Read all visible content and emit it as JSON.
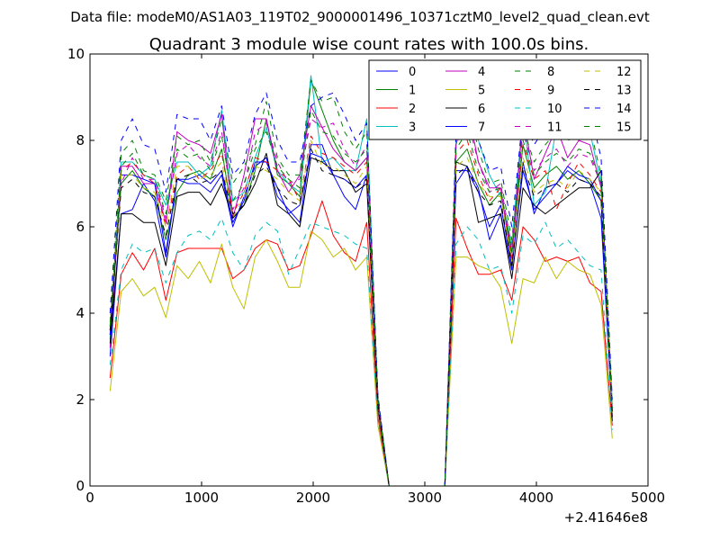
{
  "chart_data": {
    "type": "line",
    "suptitle": "Data file: modeM0/AS1A03_119T02_9000001496_10371cztM0_level2_quad_clean.evt",
    "title": "Quadrant 3 module wise count rates with 100.0s bins.",
    "xlabel": "",
    "ylabel": "",
    "offset_text": "+2.41646e8",
    "xlim": [
      0,
      5000
    ],
    "ylim": [
      0,
      10
    ],
    "xticks": [
      "0",
      "1000",
      "2000",
      "3000",
      "4000",
      "5000"
    ],
    "yticks": [
      "0",
      "2",
      "4",
      "6",
      "8",
      "10"
    ],
    "legend_position": "top-right",
    "x": [
      180,
      280,
      380,
      480,
      580,
      680,
      780,
      880,
      980,
      1080,
      1180,
      1280,
      1380,
      1480,
      1580,
      1680,
      1780,
      1880,
      1980,
      2080,
      2180,
      2280,
      2380,
      2480,
      2580,
      2680,
      2780,
      2880,
      2980,
      3080,
      3180,
      3280,
      3380,
      3480,
      3580,
      3680,
      3780,
      3880,
      3980,
      4080,
      4180,
      4280,
      4380,
      4480,
      4580,
      4680
    ],
    "series": [
      {
        "name": "0",
        "color": "#0000ff",
        "dash": "solid",
        "values": [
          3.0,
          6.3,
          6.4,
          7.0,
          6.6,
          5.3,
          7.1,
          7.0,
          7.0,
          6.8,
          7.2,
          6.0,
          6.7,
          7.4,
          7.6,
          6.7,
          6.4,
          6.1,
          7.9,
          7.9,
          7.2,
          6.7,
          6.4,
          7.2,
          1.9,
          0,
          0,
          0,
          0,
          0,
          0,
          7.0,
          7.4,
          6.9,
          5.7,
          6.3,
          5.0,
          7.5,
          6.3,
          6.9,
          7.0,
          7.3,
          7.1,
          7.0,
          6.2,
          1.6
        ]
      },
      {
        "name": "1",
        "color": "#008000",
        "dash": "solid",
        "values": [
          3.5,
          7.0,
          7.3,
          6.9,
          6.7,
          5.7,
          6.8,
          7.2,
          7.3,
          7.1,
          7.8,
          6.2,
          6.5,
          7.3,
          8.5,
          7.2,
          7.0,
          6.7,
          9.4,
          8.7,
          8.0,
          7.5,
          7.3,
          7.6,
          2.0,
          0,
          0,
          0,
          0,
          0,
          0,
          7.5,
          7.8,
          7.0,
          6.5,
          6.8,
          5.4,
          7.9,
          6.9,
          7.2,
          7.4,
          7.1,
          7.3,
          7.0,
          6.6,
          1.7
        ]
      },
      {
        "name": "2",
        "color": "#ff0000",
        "dash": "solid",
        "values": [
          2.5,
          4.9,
          5.4,
          5.0,
          5.5,
          4.3,
          5.4,
          5.5,
          5.5,
          5.5,
          5.5,
          4.8,
          5.0,
          5.5,
          5.7,
          5.6,
          5.0,
          5.1,
          5.8,
          6.6,
          5.8,
          5.4,
          5.2,
          6.1,
          1.6,
          0,
          0,
          0,
          0,
          0,
          0,
          6.2,
          5.5,
          4.9,
          4.9,
          5.0,
          4.3,
          6.0,
          5.7,
          5.2,
          5.3,
          5.2,
          5.3,
          4.7,
          4.5,
          1.4
        ]
      },
      {
        "name": "3",
        "color": "#00bfbf",
        "dash": "solid",
        "values": [
          3.4,
          7.5,
          7.5,
          7.2,
          7.1,
          6.5,
          7.5,
          7.5,
          7.2,
          7.4,
          8.7,
          6.6,
          6.8,
          7.6,
          8.3,
          7.3,
          7.0,
          6.8,
          9.5,
          7.5,
          7.6,
          7.3,
          7.3,
          8.5,
          2.0,
          0,
          0,
          0,
          0,
          0,
          0,
          8.0,
          8.7,
          8.0,
          7.2,
          6.7,
          5.6,
          8.6,
          6.5,
          6.8,
          8.3,
          8.4,
          8.1,
          8.2,
          7.0,
          1.8
        ]
      },
      {
        "name": "4",
        "color": "#bf00bf",
        "dash": "solid",
        "values": [
          3.2,
          7.4,
          7.4,
          7.0,
          7.0,
          6.1,
          8.2,
          8.0,
          7.9,
          7.7,
          8.6,
          6.2,
          7.2,
          8.5,
          8.5,
          7.3,
          6.8,
          7.2,
          8.8,
          8.3,
          7.8,
          7.5,
          7.3,
          7.6,
          1.9,
          0,
          0,
          0,
          0,
          0,
          0,
          7.9,
          8.8,
          7.5,
          6.9,
          6.9,
          5.2,
          8.6,
          7.1,
          7.7,
          8.3,
          7.6,
          8.0,
          7.9,
          6.9,
          1.6
        ]
      },
      {
        "name": "5",
        "color": "#bfbf00",
        "dash": "solid",
        "values": [
          2.2,
          4.5,
          4.8,
          4.4,
          4.6,
          3.9,
          5.1,
          4.8,
          5.2,
          4.7,
          5.6,
          4.6,
          4.1,
          5.3,
          5.7,
          5.2,
          4.6,
          4.6,
          5.9,
          5.7,
          5.3,
          5.5,
          5.0,
          5.3,
          1.4,
          0,
          0,
          0,
          0,
          0,
          0,
          5.3,
          5.3,
          5.1,
          5.0,
          4.6,
          3.3,
          4.8,
          4.7,
          5.3,
          4.8,
          5.2,
          5.0,
          4.9,
          4.2,
          1.1
        ]
      },
      {
        "name": "6",
        "color": "#000000",
        "dash": "solid",
        "values": [
          3.3,
          6.3,
          6.3,
          6.1,
          6.1,
          5.1,
          6.7,
          6.8,
          6.8,
          6.5,
          7.0,
          6.2,
          6.5,
          7.0,
          7.7,
          6.5,
          6.3,
          6.0,
          7.6,
          7.5,
          7.3,
          7.3,
          6.8,
          7.0,
          1.8,
          0,
          0,
          0,
          0,
          0,
          0,
          7.5,
          7.4,
          6.1,
          6.2,
          6.3,
          4.8,
          6.9,
          6.5,
          6.3,
          6.5,
          6.7,
          6.9,
          6.9,
          7.3,
          1.5
        ]
      },
      {
        "name": "7",
        "color": "#0000ff",
        "dash": "solid",
        "values": [
          3.5,
          7.2,
          7.2,
          7.1,
          7.0,
          5.4,
          7.1,
          7.1,
          7.2,
          7.0,
          7.3,
          6.1,
          6.6,
          7.5,
          7.5,
          6.9,
          6.3,
          6.5,
          7.7,
          7.6,
          7.2,
          7.1,
          6.9,
          7.2,
          1.9,
          0,
          0,
          0,
          0,
          0,
          0,
          7.3,
          7.3,
          6.8,
          6.0,
          6.5,
          5.1,
          7.3,
          6.4,
          6.7,
          7.0,
          7.4,
          7.2,
          7.1,
          6.6,
          1.7
        ]
      },
      {
        "name": "8",
        "color": "#008000",
        "dash": "dashed",
        "values": [
          3.8,
          7.7,
          8.0,
          7.3,
          7.2,
          6.6,
          8.1,
          7.9,
          8.0,
          7.5,
          8.5,
          7.0,
          7.4,
          7.9,
          8.9,
          7.6,
          7.2,
          7.2,
          9.4,
          8.9,
          9.0,
          8.2,
          7.8,
          8.2,
          2.1,
          0,
          0,
          0,
          0,
          0,
          0,
          8.1,
          8.9,
          7.8,
          7.0,
          7.1,
          5.7,
          8.3,
          7.5,
          7.9,
          8.2,
          8.0,
          8.1,
          8.3,
          7.2,
          1.9
        ]
      },
      {
        "name": "9",
        "color": "#ff0000",
        "dash": "dashed",
        "values": [
          3.7,
          7.3,
          7.5,
          7.2,
          7.0,
          6.0,
          7.2,
          7.4,
          7.1,
          7.3,
          7.7,
          6.3,
          6.8,
          7.6,
          7.5,
          7.3,
          7.1,
          6.6,
          8.1,
          7.7,
          7.6,
          7.4,
          7.2,
          7.5,
          1.9,
          0,
          0,
          0,
          0,
          0,
          0,
          7.7,
          8.0,
          7.2,
          6.6,
          6.9,
          5.3,
          7.9,
          7.1,
          7.3,
          6.4,
          7.0,
          7.5,
          7.2,
          6.8,
          1.7
        ]
      },
      {
        "name": "10",
        "color": "#00bfbf",
        "dash": "dashed",
        "values": [
          2.8,
          5.0,
          5.6,
          5.4,
          5.5,
          4.7,
          5.4,
          5.8,
          5.9,
          5.7,
          6.2,
          5.4,
          5.0,
          5.8,
          6.1,
          5.9,
          4.9,
          5.5,
          6.1,
          6.0,
          5.9,
          5.8,
          5.6,
          5.5,
          1.5,
          0,
          0,
          0,
          0,
          0,
          0,
          5.6,
          6.0,
          5.7,
          5.0,
          5.1,
          4.0,
          5.8,
          5.6,
          6.1,
          5.5,
          5.7,
          5.4,
          5.1,
          5.0,
          1.3
        ]
      },
      {
        "name": "11",
        "color": "#bf00bf",
        "dash": "dashed",
        "values": [
          3.6,
          7.0,
          7.6,
          7.1,
          7.1,
          6.2,
          7.7,
          7.9,
          7.6,
          7.4,
          8.2,
          6.4,
          6.9,
          8.2,
          8.4,
          7.5,
          7.0,
          7.1,
          8.5,
          8.3,
          8.4,
          7.8,
          7.4,
          7.9,
          2.0,
          0,
          0,
          0,
          0,
          0,
          0,
          7.9,
          8.5,
          7.5,
          6.8,
          7.0,
          5.5,
          8.2,
          7.3,
          7.6,
          7.8,
          7.4,
          7.7,
          7.6,
          7.0,
          1.8
        ]
      },
      {
        "name": "12",
        "color": "#bfbf00",
        "dash": "dashed",
        "values": [
          3.6,
          7.2,
          7.2,
          6.9,
          6.8,
          6.0,
          7.4,
          7.4,
          7.1,
          7.2,
          7.5,
          6.2,
          6.7,
          7.4,
          7.3,
          7.1,
          6.8,
          6.6,
          8.0,
          7.4,
          7.4,
          7.2,
          7.0,
          7.4,
          1.9,
          0,
          0,
          0,
          0,
          0,
          0,
          7.4,
          7.6,
          7.0,
          6.7,
          6.7,
          5.2,
          7.6,
          6.8,
          7.0,
          7.1,
          6.9,
          7.3,
          7.1,
          6.8,
          1.7
        ]
      },
      {
        "name": "13",
        "color": "#000000",
        "dash": "dashed",
        "values": [
          3.6,
          6.9,
          7.1,
          6.8,
          6.7,
          5.8,
          7.1,
          7.2,
          7.0,
          7.1,
          7.3,
          6.3,
          6.5,
          7.2,
          7.4,
          6.9,
          6.6,
          6.5,
          7.8,
          7.3,
          7.2,
          7.1,
          6.9,
          7.1,
          1.9,
          0,
          0,
          0,
          0,
          0,
          0,
          7.2,
          7.4,
          6.8,
          6.5,
          6.6,
          5.1,
          7.4,
          6.7,
          6.9,
          7.0,
          6.8,
          7.1,
          7.0,
          6.7,
          1.7
        ]
      },
      {
        "name": "14",
        "color": "#0000ff",
        "dash": "dashed",
        "values": [
          4.0,
          8.0,
          8.5,
          7.9,
          7.8,
          6.8,
          8.6,
          8.5,
          8.5,
          8.0,
          8.8,
          7.2,
          7.5,
          8.6,
          9.1,
          8.0,
          7.5,
          7.5,
          8.8,
          9.0,
          9.1,
          8.6,
          8.0,
          8.4,
          2.1,
          0,
          0,
          0,
          0,
          0,
          0,
          8.2,
          8.9,
          8.0,
          7.3,
          7.4,
          6.0,
          8.6,
          7.9,
          8.3,
          8.6,
          8.4,
          8.7,
          8.7,
          7.6,
          2.0
        ]
      },
      {
        "name": "15",
        "color": "#008000",
        "dash": "dashed",
        "values": [
          3.7,
          7.4,
          7.7,
          7.2,
          7.1,
          6.3,
          7.8,
          7.6,
          7.7,
          7.3,
          8.1,
          6.6,
          7.0,
          7.8,
          8.2,
          7.4,
          7.1,
          6.9,
          8.7,
          8.2,
          8.1,
          7.7,
          7.5,
          7.8,
          2.0,
          0,
          0,
          0,
          0,
          0,
          0,
          7.8,
          8.2,
          7.3,
          6.8,
          6.9,
          5.4,
          8.0,
          7.2,
          7.5,
          7.7,
          7.5,
          7.8,
          7.7,
          7.0,
          1.8
        ]
      }
    ]
  }
}
